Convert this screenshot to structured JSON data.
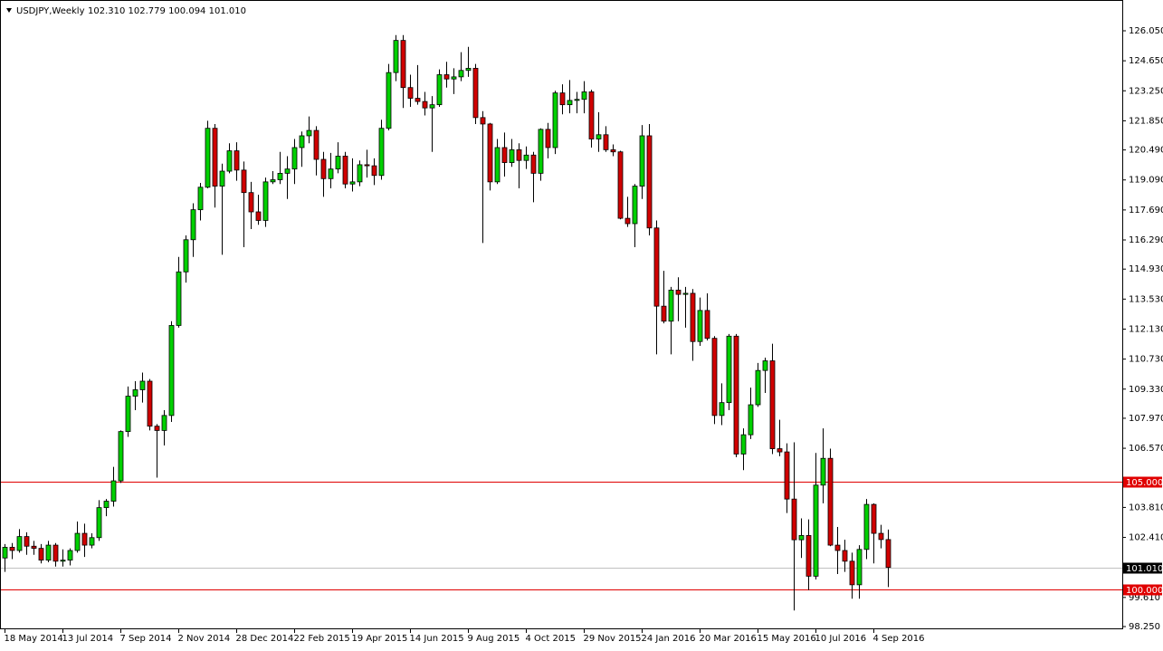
{
  "header": {
    "symbol": "USDJPY,Weekly",
    "ohlc": "102.310 102.779 100.094 101.010"
  },
  "chart_data": {
    "type": "candlestick",
    "categories": [
      "18 May 2014",
      null,
      null,
      null,
      null,
      null,
      null,
      null,
      "13 Jul 2014",
      null,
      null,
      null,
      null,
      null,
      null,
      null,
      "7 Sep 2014",
      null,
      null,
      null,
      null,
      null,
      null,
      null,
      "2 Nov 2014",
      null,
      null,
      null,
      null,
      null,
      null,
      null,
      "28 Dec 2014",
      null,
      null,
      null,
      null,
      null,
      null,
      null,
      "22 Feb 2015",
      null,
      null,
      null,
      null,
      null,
      null,
      null,
      "19 Apr 2015",
      null,
      null,
      null,
      null,
      null,
      null,
      null,
      "14 Jun 2015",
      null,
      null,
      null,
      null,
      null,
      null,
      null,
      "9 Aug 2015",
      null,
      null,
      null,
      null,
      null,
      null,
      null,
      "4 Oct 2015",
      null,
      null,
      null,
      null,
      null,
      null,
      null,
      "29 Nov 2015",
      null,
      null,
      null,
      null,
      null,
      null,
      null,
      "24 Jan 2016",
      null,
      null,
      null,
      null,
      null,
      null,
      null,
      "20 Mar 2016",
      null,
      null,
      null,
      null,
      null,
      null,
      null,
      "15 May 2016",
      null,
      null,
      null,
      null,
      null,
      null,
      null,
      "10 Jul 2016",
      null,
      null,
      null,
      null,
      null,
      null,
      null,
      "4 Sep 2016",
      null,
      null
    ],
    "open": [
      101.45,
      101.95,
      101.8,
      102.45,
      102.0,
      101.9,
      101.35,
      102.05,
      101.3,
      101.35,
      101.8,
      102.6,
      102.05,
      102.4,
      103.8,
      104.1,
      105.05,
      107.35,
      109.0,
      109.3,
      109.7,
      107.6,
      107.4,
      108.1,
      112.3,
      114.8,
      116.3,
      117.7,
      118.75,
      121.5,
      118.8,
      119.5,
      120.45,
      119.55,
      118.5,
      117.6,
      117.2,
      119.0,
      119.1,
      119.4,
      119.6,
      120.6,
      121.15,
      121.4,
      120.05,
      119.15,
      119.6,
      120.2,
      118.9,
      119.0,
      119.8,
      119.75,
      119.3,
      121.5,
      124.1,
      125.6,
      123.4,
      122.9,
      122.75,
      122.45,
      122.6,
      124.0,
      123.8,
      123.9,
      124.2,
      124.3,
      122.0,
      121.7,
      119.0,
      120.6,
      119.9,
      120.5,
      120.0,
      120.25,
      119.4,
      121.45,
      120.6,
      123.15,
      122.6,
      122.8,
      122.85,
      123.2,
      121.0,
      121.2,
      120.5,
      120.4,
      117.3,
      117.05,
      118.8,
      121.15,
      116.85,
      113.2,
      112.5,
      113.95,
      113.75,
      113.8,
      111.55,
      113.0,
      111.7,
      108.1,
      108.7,
      111.8,
      106.3,
      107.2,
      108.6,
      110.2,
      110.65,
      106.55,
      106.4,
      104.2,
      102.3,
      102.5,
      100.6,
      104.85,
      106.1,
      102.05,
      101.8,
      101.3,
      100.2,
      101.85,
      103.95,
      102.6,
      102.31
    ],
    "high": [
      102.1,
      102.15,
      102.8,
      102.65,
      102.25,
      102.1,
      102.25,
      102.15,
      101.85,
      101.9,
      103.15,
      103.05,
      102.6,
      104.15,
      104.2,
      105.7,
      107.4,
      109.45,
      109.7,
      110.1,
      109.8,
      107.7,
      108.35,
      112.5,
      115.5,
      116.5,
      118.0,
      118.95,
      121.85,
      121.7,
      119.85,
      120.8,
      120.85,
      119.95,
      119.0,
      118.4,
      119.2,
      119.5,
      120.4,
      120.2,
      121.0,
      121.35,
      122.05,
      121.6,
      120.4,
      120.35,
      120.85,
      120.4,
      120.1,
      120.0,
      120.5,
      120.1,
      121.9,
      124.5,
      125.85,
      125.85,
      124.0,
      124.45,
      123.2,
      123.0,
      124.25,
      124.6,
      124.3,
      125.05,
      125.3,
      124.5,
      122.3,
      121.75,
      121.0,
      121.3,
      121.0,
      120.8,
      120.65,
      120.4,
      121.5,
      121.75,
      123.25,
      123.55,
      123.75,
      123.2,
      123.7,
      123.3,
      122.25,
      121.6,
      120.75,
      120.45,
      118.3,
      118.9,
      121.65,
      121.7,
      117.2,
      114.85,
      114.1,
      114.55,
      114.1,
      114.0,
      113.6,
      113.8,
      111.8,
      109.6,
      111.9,
      111.9,
      107.5,
      109.4,
      110.55,
      110.8,
      111.45,
      107.9,
      106.8,
      106.85,
      103.3,
      103.25,
      106.35,
      107.5,
      106.55,
      102.9,
      102.3,
      101.7,
      102.05,
      104.2,
      104.0,
      103.0,
      102.779
    ],
    "low": [
      100.8,
      101.4,
      101.7,
      101.6,
      101.6,
      101.2,
      101.25,
      101.05,
      101.05,
      101.1,
      101.7,
      101.5,
      101.9,
      102.25,
      103.4,
      103.85,
      104.95,
      107.1,
      108.35,
      108.7,
      107.4,
      105.2,
      106.7,
      107.8,
      112.2,
      114.3,
      115.5,
      117.2,
      118.7,
      117.8,
      115.6,
      119.4,
      119.05,
      115.95,
      116.8,
      117.0,
      116.9,
      118.9,
      118.9,
      118.2,
      118.9,
      119.7,
      120.8,
      119.3,
      118.3,
      118.7,
      119.4,
      118.7,
      118.55,
      118.8,
      119.2,
      118.85,
      119.1,
      121.4,
      123.7,
      122.45,
      122.5,
      122.6,
      122.1,
      120.4,
      122.5,
      123.4,
      123.1,
      123.7,
      123.9,
      121.7,
      116.15,
      118.6,
      118.9,
      119.25,
      119.7,
      118.7,
      119.6,
      118.05,
      119.05,
      120.1,
      120.3,
      122.15,
      122.2,
      122.2,
      122.2,
      120.6,
      120.4,
      120.4,
      120.2,
      117.25,
      116.9,
      115.95,
      118.2,
      116.5,
      110.95,
      112.4,
      110.95,
      112.5,
      112.2,
      110.65,
      111.35,
      111.6,
      107.7,
      107.65,
      108.35,
      106.15,
      105.55,
      107.0,
      108.5,
      109.15,
      106.3,
      106.2,
      103.55,
      99.0,
      101.45,
      99.95,
      100.45,
      104.0,
      102.0,
      100.7,
      100.8,
      99.55,
      99.55,
      101.4,
      101.2,
      101.9,
      100.094
    ],
    "close": [
      101.95,
      101.8,
      102.45,
      102.0,
      101.9,
      101.35,
      102.05,
      101.3,
      101.35,
      101.8,
      102.6,
      102.05,
      102.4,
      103.8,
      104.1,
      105.05,
      107.35,
      109.0,
      109.3,
      109.7,
      107.6,
      107.4,
      108.1,
      112.3,
      114.8,
      116.3,
      117.7,
      118.75,
      121.5,
      118.8,
      119.5,
      120.45,
      119.55,
      118.5,
      117.6,
      117.2,
      119.0,
      119.1,
      119.4,
      119.6,
      120.6,
      121.15,
      121.4,
      120.05,
      119.15,
      119.6,
      120.2,
      118.9,
      119.0,
      119.8,
      119.75,
      119.3,
      121.5,
      124.1,
      125.6,
      123.4,
      122.9,
      122.75,
      122.45,
      122.6,
      124.0,
      123.8,
      123.9,
      124.2,
      124.3,
      122.0,
      121.7,
      119.0,
      120.6,
      119.9,
      120.5,
      120.0,
      120.25,
      119.4,
      121.45,
      120.6,
      123.15,
      122.6,
      122.8,
      122.85,
      123.2,
      121.0,
      121.2,
      120.5,
      120.4,
      117.3,
      117.05,
      118.8,
      121.15,
      116.85,
      113.2,
      112.5,
      113.95,
      113.75,
      113.8,
      111.55,
      113.0,
      111.7,
      108.1,
      108.7,
      111.8,
      106.3,
      107.2,
      108.6,
      110.2,
      110.65,
      106.55,
      106.4,
      104.2,
      102.3,
      102.5,
      100.6,
      104.85,
      106.1,
      102.05,
      101.8,
      101.3,
      100.2,
      101.85,
      103.95,
      102.6,
      102.31,
      101.01
    ],
    "up_color": "#00d000",
    "down_color": "#d00000",
    "wick_color": "#000000",
    "ylim": [
      98.124,
      127.486
    ],
    "yticks": [
      {
        "value": 126.05,
        "label": "126.050"
      },
      {
        "value": 124.65,
        "label": "124.650"
      },
      {
        "value": 123.25,
        "label": "123.250"
      },
      {
        "value": 121.85,
        "label": "121.850"
      },
      {
        "value": 120.49,
        "label": "120.490"
      },
      {
        "value": 119.09,
        "label": "119.090"
      },
      {
        "value": 117.69,
        "label": "117.690"
      },
      {
        "value": 116.29,
        "label": "116.290"
      },
      {
        "value": 114.93,
        "label": "114.930"
      },
      {
        "value": 113.53,
        "label": "113.530"
      },
      {
        "value": 112.13,
        "label": "112.130"
      },
      {
        "value": 110.73,
        "label": "110.730"
      },
      {
        "value": 109.33,
        "label": "109.330"
      },
      {
        "value": 107.97,
        "label": "107.970"
      },
      {
        "value": 106.57,
        "label": "106.570"
      },
      {
        "value": 103.81,
        "label": "103.810"
      },
      {
        "value": 102.41,
        "label": "102.410"
      },
      {
        "value": 99.61,
        "label": "99.610"
      },
      {
        "value": 98.25,
        "label": "98.250"
      }
    ],
    "levels": [
      {
        "value": 105,
        "label": "105.000",
        "color": "#e00000"
      },
      {
        "value": 100,
        "label": "100.000",
        "color": "#e00000"
      },
      {
        "value": 101.01,
        "label": "101.010",
        "color": "#c0c0c0"
      }
    ],
    "grid": false
  }
}
